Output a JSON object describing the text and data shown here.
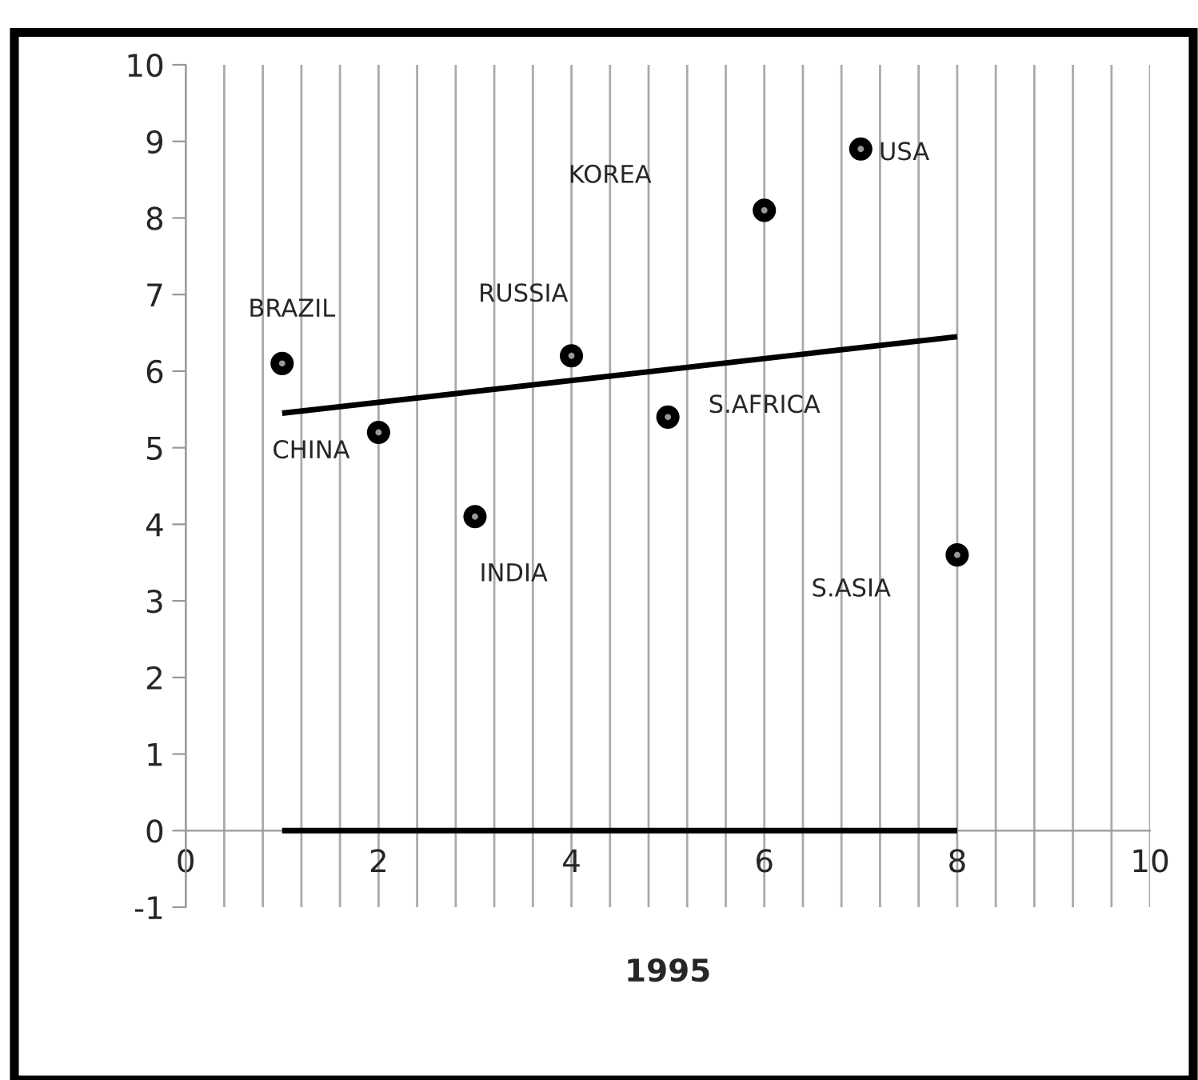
{
  "chart_data": {
    "type": "scatter",
    "xlabel": "1995",
    "xlim": [
      0,
      10
    ],
    "ylim": [
      -1,
      10
    ],
    "xticks": [
      0,
      {
        "value": 0.4,
        "label": null
      },
      {
        "value": 0.8,
        "label": null
      },
      {
        "value": 1.2,
        "label": null
      },
      {
        "value": 1.6,
        "label": null
      },
      2,
      {
        "value": 2.4,
        "label": null
      },
      {
        "value": 2.8,
        "label": null
      },
      {
        "value": 3.2,
        "label": null
      },
      {
        "value": 3.6,
        "label": null
      },
      4,
      {
        "value": 4.4,
        "label": null
      },
      {
        "value": 4.8,
        "label": null
      },
      {
        "value": 5.2,
        "label": null
      },
      {
        "value": 5.6,
        "label": null
      },
      6,
      {
        "value": 6.4,
        "label": null
      },
      {
        "value": 6.8,
        "label": null
      },
      {
        "value": 7.2,
        "label": null
      },
      {
        "value": 7.6,
        "label": null
      },
      8,
      {
        "value": 8.4,
        "label": null
      },
      {
        "value": 8.8,
        "label": null
      },
      {
        "value": 9.2,
        "label": null
      },
      {
        "value": 9.6,
        "label": null
      },
      10
    ],
    "yticks": [
      -1,
      0,
      1,
      2,
      3,
      4,
      5,
      6,
      7,
      8,
      9,
      10
    ],
    "grid": "x",
    "series": [
      {
        "color": "#000000",
        "marker": "circle",
        "x": [
          1,
          2,
          3,
          4,
          5,
          6,
          7,
          8
        ],
        "values": [
          6.1,
          5.2,
          4.1,
          6.2,
          5.4,
          8.1,
          8.9,
          3.6
        ]
      },
      {
        "type": "line",
        "color": "#000000",
        "marker": "none",
        "x": [
          1,
          8
        ],
        "values": [
          5.45,
          6.45
        ]
      },
      {
        "type": "line",
        "color": "#000000",
        "marker": "none",
        "x": [
          1,
          8
        ],
        "values": [
          0,
          0
        ]
      }
    ],
    "annotations": [
      "BRAZIL",
      "CHINA",
      "INDIA",
      "RUSSIA",
      "S.AFRICA",
      "KOREA",
      "USA",
      "S.ASIA"
    ]
  }
}
